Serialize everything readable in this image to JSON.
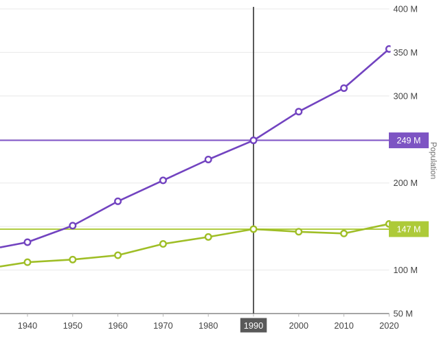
{
  "chart_data": {
    "type": "line",
    "title": "",
    "y_axis_title": "Population",
    "x_years": [
      1940,
      1950,
      1960,
      1970,
      1980,
      1990,
      2000,
      2010,
      2020
    ],
    "x_tick_labels": [
      "1940",
      "1950",
      "1960",
      "1970",
      "1980",
      "1990",
      "2000",
      "2010",
      "2020"
    ],
    "selected_year": 1990,
    "selected_year_label": "1990",
    "ylim": [
      50,
      400
    ],
    "y_unit": "M",
    "y_gridline_values": [
      400,
      350,
      300,
      250,
      200,
      150,
      100
    ],
    "y_axis_labels": [
      {
        "value": 400,
        "label": "400 M"
      },
      {
        "value": 350,
        "label": "350 M"
      },
      {
        "value": 300,
        "label": "300 M"
      },
      {
        "value": 200,
        "label": "200 M"
      },
      {
        "value": 100,
        "label": "100 M"
      },
      {
        "value": 50,
        "label": "50 M"
      }
    ],
    "legend": "none",
    "marker_style": "open-circle",
    "series": [
      {
        "name": "purple-series",
        "line_color": "#7243c0",
        "values": [
          132,
          151,
          179,
          203,
          227,
          249,
          282,
          309,
          354
        ],
        "left_edge_value": 126,
        "reference": {
          "value": 249,
          "label": "249 M",
          "line_color": "#8055c8",
          "badge_color": "#7d54c3"
        }
      },
      {
        "name": "green-series",
        "line_color": "#9fbe26",
        "values": [
          109,
          112,
          117,
          130,
          138,
          147,
          144,
          142,
          153
        ],
        "left_edge_value": 104,
        "reference": {
          "value": 147,
          "label": "147 M",
          "line_color": "#b0cc40",
          "badge_color": "#adca39"
        }
      }
    ],
    "colors": {
      "background": "#ffffff",
      "gridline": "#e8e8e8",
      "axis_line": "#6f6f6f",
      "axis_tick": "#b3b3b3",
      "ruler": "#3c3c3c",
      "tick_label": "#444444",
      "selected_bg": "#595959",
      "selected_text": "#ffffff",
      "badge_text": "#ffffff",
      "axis_title": "#6e6e6e"
    }
  }
}
